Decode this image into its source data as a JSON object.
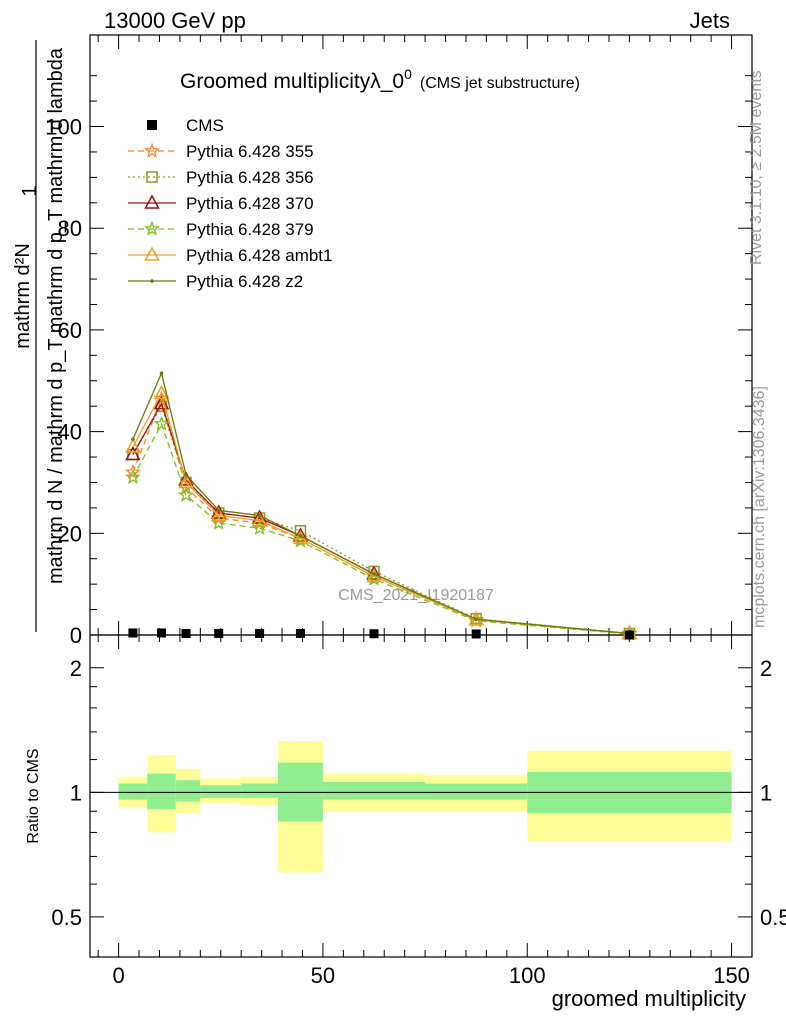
{
  "header": {
    "left": "13000 GeV pp",
    "right": "Jets"
  },
  "side_labels": {
    "rivet": "Rivet 3.1.10, ≥ 2.5M events",
    "mcplots": "mcplots.cern.ch [arXiv:1306.3436]"
  },
  "watermark": "CMS_2021_I1920187",
  "chart_data": {
    "type": "line",
    "title": "Groomed multiplicityλ_0",
    "title_superscript": "0",
    "title_suffix": "(CMS jet substructure)",
    "xlabel": "groomed multiplicity",
    "ylabel_numerator": "mathrm d²N",
    "ylabel_denominator": "mathrm d N / mathrm d p_T mathrm d p_T mathrm d lambda",
    "ylabel_prefix": "1",
    "ratio_ylabel": "Ratio to CMS",
    "xlim": [
      -7,
      155
    ],
    "ylim": [
      0,
      118
    ],
    "ratio_ylim": [
      0.4,
      2.4
    ],
    "x_ticks": [
      0,
      50,
      100,
      150
    ],
    "y_ticks": [
      0,
      20,
      40,
      60,
      80,
      100
    ],
    "ratio_ticks": [
      0.5,
      1,
      2
    ],
    "x_tick_labels": [
      "0",
      "50",
      "100",
      "150"
    ],
    "y_tick_labels": [
      "0",
      "20",
      "40",
      "60",
      "80",
      "100"
    ],
    "ratio_tick_labels": [
      "0.5",
      "1",
      "2"
    ],
    "x": [
      3.5,
      10.5,
      16.5,
      24.5,
      34.5,
      44.5,
      62.5,
      87.5,
      125
    ],
    "cms": {
      "name": "CMS",
      "values": [
        0.4,
        0.4,
        0.3,
        0.3,
        0.3,
        0.3,
        0.25,
        0.2,
        0.0
      ]
    },
    "series": [
      {
        "name": "Pythia 6.428 355",
        "color": "#ff7f2a",
        "dash": "6,4",
        "marker": "star",
        "values": [
          32.0,
          46.5,
          29.0,
          23.0,
          22.0,
          19.0,
          11.5,
          3.0,
          0.3
        ]
      },
      {
        "name": "Pythia 6.428 356",
        "color": "#8a9a1e",
        "dash": "2,3",
        "marker": "square",
        "values": [
          35.5,
          45.0,
          30.0,
          24.0,
          23.0,
          20.5,
          12.5,
          3.2,
          0.3
        ]
      },
      {
        "name": "Pythia 6.428 370",
        "color": "#a01010",
        "dash": "",
        "marker": "triangle",
        "values": [
          35.5,
          45.5,
          30.5,
          24.0,
          23.0,
          19.5,
          12.0,
          3.0,
          0.3
        ]
      },
      {
        "name": "Pythia 6.428 379",
        "color": "#7ac21a",
        "dash": "6,4",
        "marker": "star",
        "values": [
          31.0,
          41.5,
          27.5,
          22.0,
          21.0,
          18.5,
          11.0,
          2.8,
          0.2
        ]
      },
      {
        "name": "Pythia 6.428 ambt1",
        "color": "#f0a020",
        "dash": "",
        "marker": "triangle",
        "values": [
          37.0,
          47.5,
          30.0,
          23.5,
          22.5,
          19.0,
          11.5,
          3.0,
          0.3
        ]
      },
      {
        "name": "Pythia 6.428 z2",
        "color": "#6b7a0a",
        "dash": "",
        "marker": "dot",
        "values": [
          38.5,
          51.5,
          31.5,
          24.5,
          23.5,
          19.5,
          12.0,
          3.1,
          0.3
        ]
      }
    ],
    "ratio_bands": [
      {
        "x0": 0,
        "x1": 7,
        "inner": [
          0.96,
          1.05
        ],
        "outer": [
          0.92,
          1.09
        ]
      },
      {
        "x0": 7,
        "x1": 14,
        "inner": [
          0.91,
          1.11
        ],
        "outer": [
          0.8,
          1.23
        ]
      },
      {
        "x0": 14,
        "x1": 20,
        "inner": [
          0.95,
          1.07
        ],
        "outer": [
          0.89,
          1.14
        ]
      },
      {
        "x0": 20,
        "x1": 30,
        "inner": [
          0.97,
          1.04
        ],
        "outer": [
          0.94,
          1.08
        ]
      },
      {
        "x0": 30,
        "x1": 39,
        "inner": [
          0.97,
          1.05
        ],
        "outer": [
          0.93,
          1.09
        ]
      },
      {
        "x0": 39,
        "x1": 50,
        "inner": [
          0.85,
          1.18
        ],
        "outer": [
          0.64,
          1.33
        ]
      },
      {
        "x0": 50,
        "x1": 75,
        "inner": [
          0.96,
          1.06
        ],
        "outer": [
          0.9,
          1.11
        ]
      },
      {
        "x0": 75,
        "x1": 100,
        "inner": [
          0.96,
          1.05
        ],
        "outer": [
          0.9,
          1.1
        ]
      },
      {
        "x0": 100,
        "x1": 150,
        "inner": [
          0.89,
          1.12
        ],
        "outer": [
          0.76,
          1.26
        ]
      }
    ],
    "band_colors": {
      "inner": "#90ee90",
      "outer": "#ffff99"
    },
    "grid": false,
    "legend_position": "top-left"
  }
}
